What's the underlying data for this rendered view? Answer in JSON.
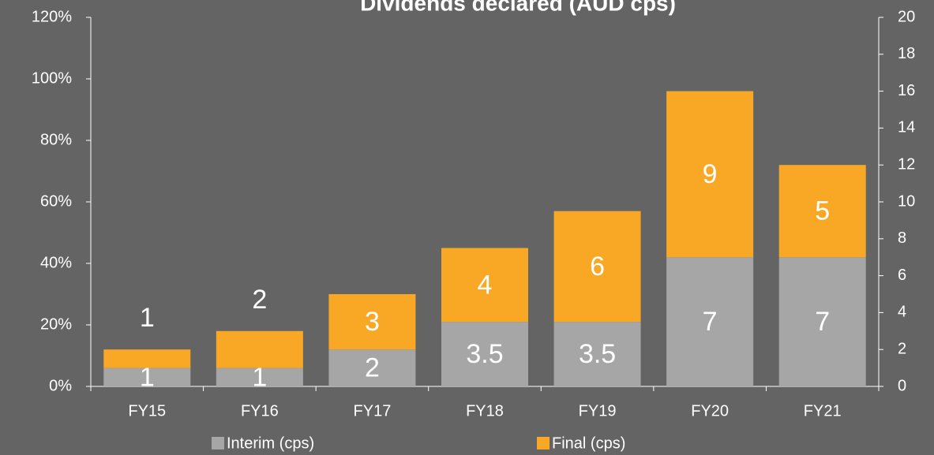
{
  "chart_data": {
    "type": "bar",
    "stacked": true,
    "title": "Dividends declared (AUD cps)",
    "categories": [
      "FY15",
      "FY16",
      "FY17",
      "FY18",
      "FY19",
      "FY20",
      "FY21"
    ],
    "series": [
      {
        "name": "Interim (cps)",
        "color": "#a6a6a6",
        "axis": "y2",
        "values": [
          1,
          1,
          2,
          3.5,
          3.5,
          7,
          7
        ]
      },
      {
        "name": "Final (cps)",
        "color": "#f9a825",
        "axis": "y2",
        "values": [
          1,
          2,
          3,
          4,
          6,
          9,
          5
        ]
      }
    ],
    "ylim": [
      0,
      120
    ],
    "yticks": [
      {
        "value": 0,
        "label": "0%"
      },
      {
        "value": 20,
        "label": "20%"
      },
      {
        "value": 40,
        "label": "40%"
      },
      {
        "value": 60,
        "label": "60%"
      },
      {
        "value": 80,
        "label": "80%"
      },
      {
        "value": 100,
        "label": "100%"
      },
      {
        "value": 120,
        "label": "120%"
      }
    ],
    "y2lim": [
      0,
      20
    ],
    "y2ticks": [
      0,
      2,
      4,
      6,
      8,
      10,
      12,
      14,
      16,
      18,
      20
    ],
    "legend": "bottom"
  }
}
